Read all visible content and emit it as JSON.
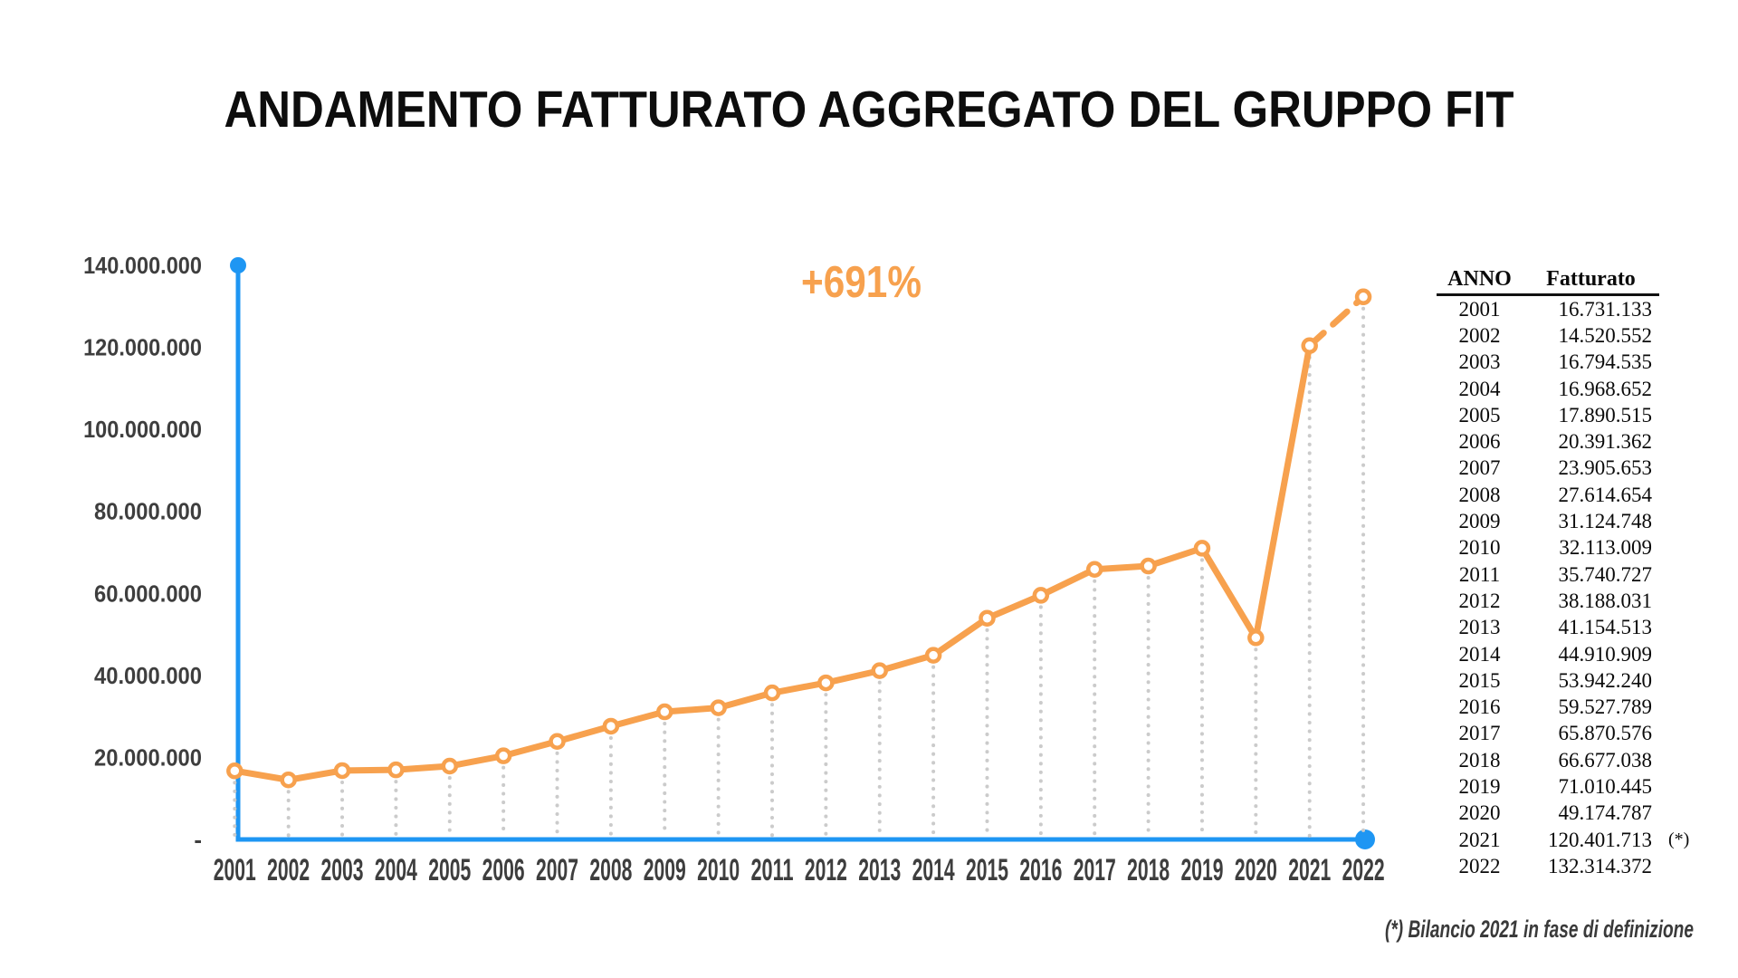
{
  "title": "ANDAMENTO FATTURATO AGGREGATO DEL GRUPPO FIT",
  "annotation": "+691%",
  "footnote": "(*) Bilancio 2021 in fase di definizione",
  "colors": {
    "accent_orange": "#F7A14E",
    "axis_blue": "#1E96F3",
    "dropline_gray": "#CBCBCB",
    "label_gray": "#3E3E3E",
    "title_black": "#0D0D0D",
    "table_black": "#0A0A0A"
  },
  "chart_data": {
    "type": "line",
    "title": "ANDAMENTO FATTURATO AGGREGATO DEL GRUPPO FIT",
    "x": [
      "2001",
      "2002",
      "2003",
      "2004",
      "2005",
      "2006",
      "2007",
      "2008",
      "2009",
      "2010",
      "2011",
      "2012",
      "2013",
      "2014",
      "2015",
      "2016",
      "2017",
      "2018",
      "2019",
      "2020",
      "2021",
      "2022"
    ],
    "series": [
      {
        "name": "Fatturato",
        "values": [
          16731133,
          14520552,
          16794535,
          16968652,
          17890515,
          20391362,
          23905653,
          27614654,
          31124748,
          32113009,
          35740727,
          38188031,
          41154513,
          44910909,
          53942240,
          59527789,
          65870576,
          66677038,
          71010445,
          49174787,
          120401713,
          132314372
        ]
      }
    ],
    "ylim": [
      0,
      140000000
    ],
    "ytick_values": [
      0,
      20000000,
      40000000,
      60000000,
      80000000,
      100000000,
      120000000,
      140000000
    ],
    "ytick_labels": [
      "-",
      "20.000.000",
      "40.000.000",
      "60.000.000",
      "80.000.000",
      "100.000.000",
      "120.000.000",
      "140.000.000"
    ],
    "grid": "vertical dotted droplines under each point",
    "legend": "none",
    "annotation": "+691%",
    "style_notes": "orange line with ring markers; final segment 2021-2022 dashed; blue L-shaped axes with end dots"
  },
  "table": {
    "headers": [
      "ANNO",
      "Fatturato"
    ],
    "rows": [
      {
        "year": "2001",
        "value": "16.731.133",
        "note": ""
      },
      {
        "year": "2002",
        "value": "14.520.552",
        "note": ""
      },
      {
        "year": "2003",
        "value": "16.794.535",
        "note": ""
      },
      {
        "year": "2004",
        "value": "16.968.652",
        "note": ""
      },
      {
        "year": "2005",
        "value": "17.890.515",
        "note": ""
      },
      {
        "year": "2006",
        "value": "20.391.362",
        "note": ""
      },
      {
        "year": "2007",
        "value": "23.905.653",
        "note": ""
      },
      {
        "year": "2008",
        "value": "27.614.654",
        "note": ""
      },
      {
        "year": "2009",
        "value": "31.124.748",
        "note": ""
      },
      {
        "year": "2010",
        "value": "32.113.009",
        "note": ""
      },
      {
        "year": "2011",
        "value": "35.740.727",
        "note": ""
      },
      {
        "year": "2012",
        "value": "38.188.031",
        "note": ""
      },
      {
        "year": "2013",
        "value": "41.154.513",
        "note": ""
      },
      {
        "year": "2014",
        "value": "44.910.909",
        "note": ""
      },
      {
        "year": "2015",
        "value": "53.942.240",
        "note": ""
      },
      {
        "year": "2016",
        "value": "59.527.789",
        "note": ""
      },
      {
        "year": "2017",
        "value": "65.870.576",
        "note": ""
      },
      {
        "year": "2018",
        "value": "66.677.038",
        "note": ""
      },
      {
        "year": "2019",
        "value": "71.010.445",
        "note": ""
      },
      {
        "year": "2020",
        "value": "49.174.787",
        "note": ""
      },
      {
        "year": "2021",
        "value": "120.401.713",
        "note": "(*)"
      },
      {
        "year": "2022",
        "value": "132.314.372",
        "note": ""
      }
    ]
  }
}
